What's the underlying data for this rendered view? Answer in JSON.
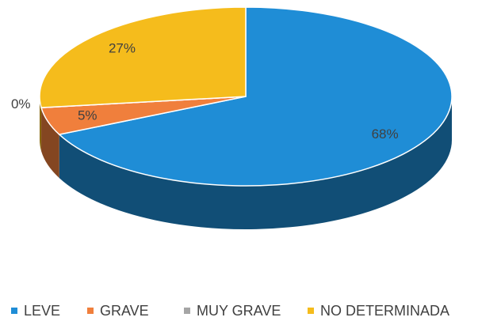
{
  "chart_data": {
    "type": "pie",
    "categories": [
      "LEVE",
      "GRAVE",
      "MUY GRAVE",
      "NO DETERMINADA"
    ],
    "values": [
      68,
      5,
      0,
      27
    ],
    "value_labels": [
      "68%",
      "5%",
      "0%",
      "27%"
    ],
    "colors": [
      "#1f8dd6",
      "#f07f3c",
      "#a5a5a5",
      "#f5bc1c"
    ],
    "legend": "bottom"
  }
}
